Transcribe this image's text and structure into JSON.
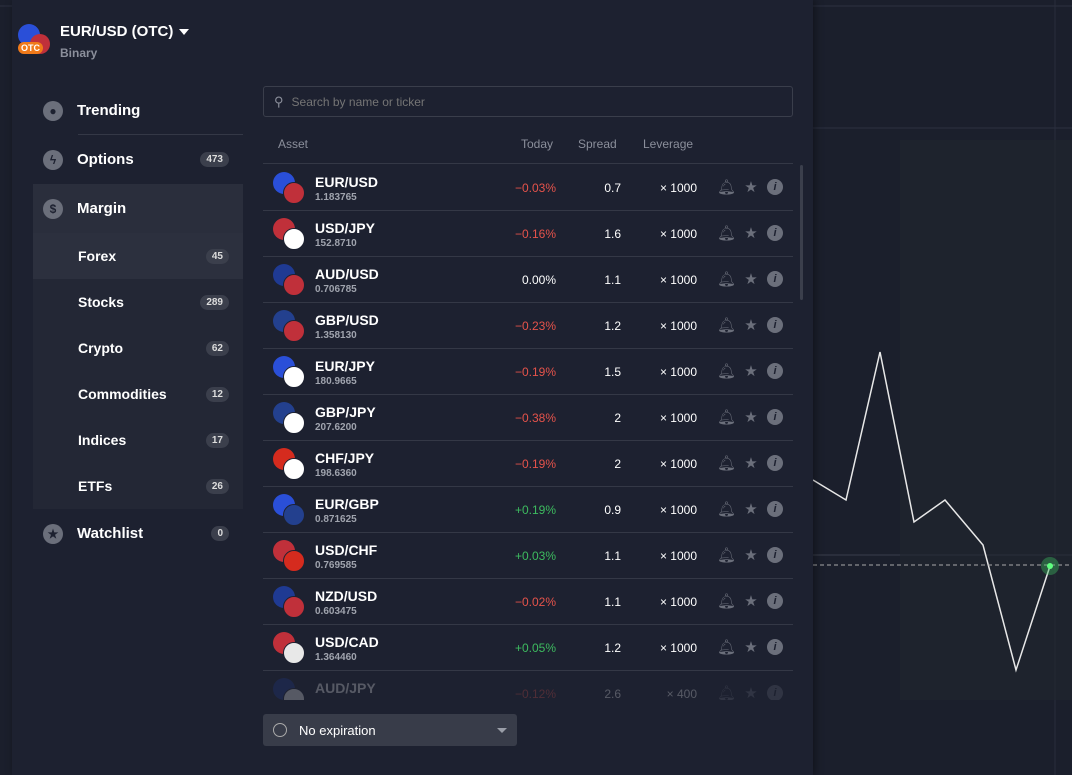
{
  "header": {
    "title": "EUR/USD (OTC)",
    "subtitle": "Binary",
    "logo_badge": "OTC"
  },
  "search": {
    "placeholder": "Search by name or ticker"
  },
  "sidebar": [
    {
      "label": "Trending",
      "icon": "fire-icon",
      "glyph": "🔥"
    },
    {
      "label": "Options",
      "icon": "lightning-icon",
      "glyph": "⚡",
      "count": "473"
    },
    {
      "label": "Margin",
      "icon": "dollar-icon",
      "glyph": "$"
    }
  ],
  "margin_sub": [
    {
      "label": "Forex",
      "count": "45"
    },
    {
      "label": "Stocks",
      "count": "289"
    },
    {
      "label": "Crypto",
      "count": "62"
    },
    {
      "label": "Commodities",
      "count": "12"
    },
    {
      "label": "Indices",
      "count": "17"
    },
    {
      "label": "ETFs",
      "count": "26"
    }
  ],
  "watchlist": {
    "label": "Watchlist",
    "count": "0",
    "glyph": "★"
  },
  "table": {
    "headers": {
      "asset": "Asset",
      "today": "Today",
      "spread": "Spread",
      "leverage": "Leverage"
    },
    "rows": [
      {
        "name": "EUR/USD",
        "price": "1.183765",
        "today": "−0.03%",
        "dir": "neg",
        "spread": "0.7",
        "leverage": "× 1000",
        "c1": "#2a4fd8",
        "c2": "#c0303a"
      },
      {
        "name": "USD/JPY",
        "price": "152.8710",
        "today": "−0.16%",
        "dir": "neg",
        "spread": "1.6",
        "leverage": "× 1000",
        "c1": "#c0303a",
        "c2": "#ffffff"
      },
      {
        "name": "AUD/USD",
        "price": "0.706785",
        "today": "0.00%",
        "dir": "neu",
        "spread": "1.1",
        "leverage": "× 1000",
        "c1": "#1f3a93",
        "c2": "#c0303a"
      },
      {
        "name": "GBP/USD",
        "price": "1.358130",
        "today": "−0.23%",
        "dir": "neg",
        "spread": "1.2",
        "leverage": "× 1000",
        "c1": "#23408e",
        "c2": "#c0303a"
      },
      {
        "name": "EUR/JPY",
        "price": "180.9665",
        "today": "−0.19%",
        "dir": "neg",
        "spread": "1.5",
        "leverage": "× 1000",
        "c1": "#2a4fd8",
        "c2": "#ffffff"
      },
      {
        "name": "GBP/JPY",
        "price": "207.6200",
        "today": "−0.38%",
        "dir": "neg",
        "spread": "2",
        "leverage": "× 1000",
        "c1": "#23408e",
        "c2": "#ffffff"
      },
      {
        "name": "CHF/JPY",
        "price": "198.6360",
        "today": "−0.19%",
        "dir": "neg",
        "spread": "2",
        "leverage": "× 1000",
        "c1": "#d52b1e",
        "c2": "#ffffff"
      },
      {
        "name": "EUR/GBP",
        "price": "0.871625",
        "today": "+0.19%",
        "dir": "pos",
        "spread": "0.9",
        "leverage": "× 1000",
        "c1": "#2a4fd8",
        "c2": "#23408e"
      },
      {
        "name": "USD/CHF",
        "price": "0.769585",
        "today": "+0.03%",
        "dir": "pos",
        "spread": "1.1",
        "leverage": "× 1000",
        "c1": "#c0303a",
        "c2": "#d52b1e"
      },
      {
        "name": "NZD/USD",
        "price": "0.603475",
        "today": "−0.02%",
        "dir": "neg",
        "spread": "1.1",
        "leverage": "× 1000",
        "c1": "#1f3a93",
        "c2": "#c0303a"
      },
      {
        "name": "USD/CAD",
        "price": "1.364460",
        "today": "+0.05%",
        "dir": "pos",
        "spread": "1.2",
        "leverage": "× 1000",
        "c1": "#c0303a",
        "c2": "#e8e8e8"
      },
      {
        "name": "AUD/JPY",
        "price": "",
        "today": "−0.12%",
        "dir": "neg",
        "spread": "2.6",
        "leverage": "× 400",
        "c1": "#1f3a93",
        "c2": "#ffffff",
        "faded": true
      }
    ]
  },
  "expiration": {
    "label": "No expiration"
  },
  "colors": {
    "negative": "#e5534b",
    "positive": "#3dbb5f",
    "panel": "#1d2130"
  }
}
